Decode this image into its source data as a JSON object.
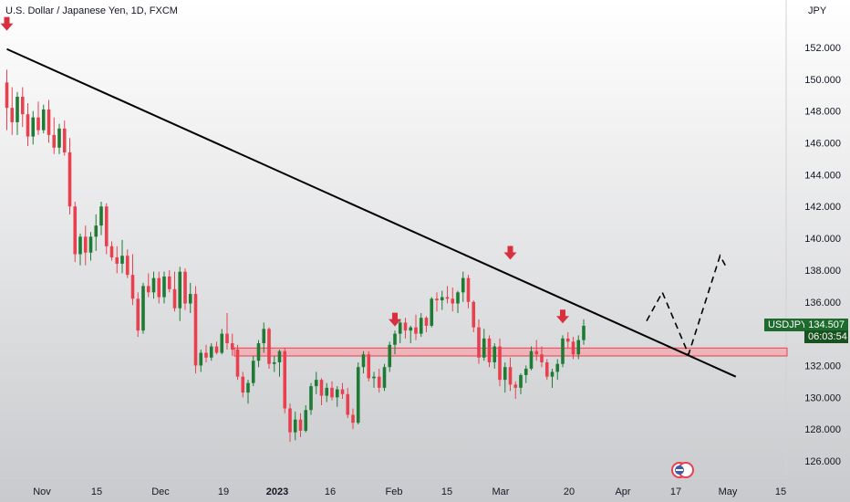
{
  "chart_data": {
    "type": "candlestick",
    "title": "U.S. Dollar / Japanese Yen, 1D, FXCM",
    "currency_label": "JPY",
    "symbol": "USDJPY",
    "last_price": "134.507",
    "countdown": "06:03:54",
    "ylim": [
      125.0,
      155.0
    ],
    "y_ticks": [
      "152.000",
      "150.000",
      "148.000",
      "146.000",
      "144.000",
      "142.000",
      "140.000",
      "138.000",
      "136.000",
      "134.000",
      "132.000",
      "130.000",
      "128.000",
      "126.000"
    ],
    "x_ticks": [
      {
        "label": "Nov",
        "bold": false
      },
      {
        "label": "15",
        "bold": false
      },
      {
        "label": "Dec",
        "bold": false
      },
      {
        "label": "19",
        "bold": false
      },
      {
        "label": "2023",
        "bold": true
      },
      {
        "label": "16",
        "bold": false
      },
      {
        "label": "Feb",
        "bold": false
      },
      {
        "label": "15",
        "bold": false
      },
      {
        "label": "Mar",
        "bold": false
      },
      {
        "label": "20",
        "bold": false
      },
      {
        "label": "Apr",
        "bold": false
      },
      {
        "label": "17",
        "bold": false
      },
      {
        "label": "May",
        "bold": false
      },
      {
        "label": "15",
        "bold": false
      }
    ],
    "colors": {
      "up": "#1e7b34",
      "down": "#e8404f",
      "line": "#000000",
      "zone": "#f4a7ae",
      "zone_border": "#e8404f",
      "arrow": "#d93040"
    },
    "candles": [
      [
        149.8,
        150.6,
        146.8,
        148.2
      ],
      [
        148.2,
        149.5,
        146.5,
        147.3
      ],
      [
        147.3,
        149.2,
        146.5,
        148.9
      ],
      [
        148.9,
        149.5,
        147.0,
        147.8
      ],
      [
        147.8,
        148.5,
        145.8,
        146.4
      ],
      [
        146.4,
        148.0,
        145.9,
        147.6
      ],
      [
        147.6,
        148.6,
        146.5,
        146.8
      ],
      [
        146.8,
        148.4,
        146.6,
        148.1
      ],
      [
        148.1,
        148.7,
        146.0,
        146.5
      ],
      [
        146.5,
        147.6,
        145.3,
        145.7
      ],
      [
        145.7,
        147.2,
        145.3,
        146.9
      ],
      [
        146.9,
        147.4,
        145.2,
        145.4
      ],
      [
        145.4,
        146.3,
        141.5,
        142.0
      ],
      [
        142.0,
        142.3,
        138.5,
        139.0
      ],
      [
        139.0,
        140.3,
        138.3,
        140.1
      ],
      [
        140.1,
        140.8,
        138.3,
        139.1
      ],
      [
        139.1,
        140.4,
        138.6,
        140.1
      ],
      [
        140.1,
        141.5,
        139.2,
        140.8
      ],
      [
        140.8,
        142.3,
        140.2,
        142.0
      ],
      [
        142.0,
        142.2,
        139.0,
        139.5
      ],
      [
        139.5,
        139.8,
        138.6,
        138.8
      ],
      [
        138.8,
        139.5,
        137.8,
        138.4
      ],
      [
        138.4,
        139.9,
        137.8,
        138.9
      ],
      [
        138.9,
        139.3,
        137.5,
        137.7
      ],
      [
        137.7,
        139.0,
        135.8,
        136.2
      ],
      [
        136.2,
        136.6,
        133.8,
        134.2
      ],
      [
        134.2,
        137.2,
        134.0,
        137.0
      ],
      [
        137.0,
        137.8,
        136.3,
        136.6
      ],
      [
        136.6,
        137.9,
        136.2,
        137.5
      ],
      [
        137.5,
        137.9,
        135.9,
        136.3
      ],
      [
        136.3,
        137.9,
        135.9,
        137.6
      ],
      [
        137.6,
        138.0,
        136.6,
        136.8
      ],
      [
        136.8,
        137.9,
        135.4,
        135.6
      ],
      [
        135.6,
        138.2,
        134.8,
        137.9
      ],
      [
        137.9,
        138.1,
        135.5,
        135.9
      ],
      [
        135.9,
        137.2,
        135.3,
        136.5
      ],
      [
        136.5,
        137.0,
        131.5,
        132.0
      ],
      [
        132.0,
        133.0,
        131.6,
        132.8
      ],
      [
        132.8,
        133.3,
        132.2,
        132.5
      ],
      [
        132.5,
        133.4,
        132.3,
        133.2
      ],
      [
        133.2,
        133.5,
        132.7,
        132.8
      ],
      [
        132.8,
        134.3,
        132.7,
        134.0
      ],
      [
        134.0,
        135.3,
        133.0,
        133.4
      ],
      [
        133.4,
        134.0,
        132.6,
        133.0
      ],
      [
        133.0,
        133.3,
        131.1,
        131.3
      ],
      [
        131.3,
        131.6,
        130.0,
        130.3
      ],
      [
        130.3,
        131.1,
        129.6,
        130.9
      ],
      [
        130.9,
        132.6,
        130.7,
        132.3
      ],
      [
        132.3,
        133.6,
        131.9,
        133.4
      ],
      [
        133.4,
        134.7,
        132.8,
        134.3
      ],
      [
        134.3,
        134.4,
        131.8,
        132.1
      ],
      [
        132.1,
        132.6,
        131.6,
        132.2
      ],
      [
        132.2,
        133.0,
        131.3,
        132.9
      ],
      [
        132.9,
        133.1,
        129.0,
        129.3
      ],
      [
        129.3,
        129.6,
        127.2,
        127.8
      ],
      [
        127.8,
        129.1,
        127.3,
        128.6
      ],
      [
        128.6,
        129.0,
        127.5,
        127.9
      ],
      [
        127.9,
        129.5,
        127.8,
        129.2
      ],
      [
        129.2,
        130.9,
        128.9,
        130.7
      ],
      [
        130.7,
        131.6,
        130.2,
        131.1
      ],
      [
        131.1,
        131.2,
        129.5,
        130.1
      ],
      [
        130.1,
        130.9,
        129.7,
        130.6
      ],
      [
        130.6,
        131.0,
        129.8,
        130.0
      ],
      [
        130.0,
        130.7,
        129.4,
        130.5
      ],
      [
        130.5,
        130.9,
        129.9,
        130.2
      ],
      [
        130.2,
        130.6,
        128.7,
        128.9
      ],
      [
        128.9,
        129.3,
        128.0,
        128.4
      ],
      [
        128.4,
        132.2,
        128.3,
        131.9
      ],
      [
        131.9,
        132.9,
        131.5,
        132.7
      ],
      [
        132.7,
        132.9,
        131.0,
        131.2
      ],
      [
        131.2,
        131.6,
        130.6,
        131.3
      ],
      [
        131.3,
        131.8,
        130.3,
        130.6
      ],
      [
        130.6,
        132.1,
        130.4,
        131.9
      ],
      [
        131.9,
        133.5,
        131.6,
        133.3
      ],
      [
        133.3,
        134.2,
        132.7,
        134.0
      ],
      [
        134.0,
        134.9,
        133.4,
        134.7
      ],
      [
        134.7,
        135.0,
        133.7,
        134.2
      ],
      [
        134.2,
        134.5,
        133.4,
        134.4
      ],
      [
        134.4,
        135.2,
        133.6,
        134.0
      ],
      [
        134.0,
        135.3,
        133.8,
        135.0
      ],
      [
        135.0,
        135.1,
        134.1,
        134.5
      ],
      [
        134.5,
        136.3,
        134.4,
        136.2
      ],
      [
        136.2,
        136.6,
        135.4,
        136.1
      ],
      [
        136.1,
        136.7,
        135.5,
        136.3
      ],
      [
        136.3,
        137.0,
        135.9,
        136.2
      ],
      [
        136.2,
        136.9,
        135.4,
        135.9
      ],
      [
        135.9,
        136.7,
        135.3,
        136.6
      ],
      [
        136.6,
        137.9,
        136.0,
        137.5
      ],
      [
        137.5,
        137.7,
        135.6,
        136.0
      ],
      [
        136.0,
        136.1,
        134.1,
        134.4
      ],
      [
        134.4,
        134.9,
        132.1,
        132.5
      ],
      [
        132.5,
        134.3,
        132.3,
        133.7
      ],
      [
        133.7,
        133.9,
        131.9,
        132.2
      ],
      [
        132.2,
        133.4,
        131.8,
        133.2
      ],
      [
        133.2,
        133.7,
        130.7,
        131.1
      ],
      [
        131.1,
        132.2,
        130.3,
        131.9
      ],
      [
        131.9,
        132.5,
        130.4,
        130.8
      ],
      [
        130.8,
        131.0,
        129.9,
        130.6
      ],
      [
        130.6,
        131.5,
        130.2,
        131.4
      ],
      [
        131.4,
        132.0,
        130.9,
        131.8
      ],
      [
        131.8,
        133.2,
        131.7,
        132.9
      ],
      [
        132.9,
        133.6,
        132.3,
        132.7
      ],
      [
        132.7,
        133.2,
        131.9,
        132.2
      ],
      [
        132.2,
        132.4,
        131.1,
        131.3
      ],
      [
        131.3,
        131.8,
        130.6,
        131.6
      ],
      [
        131.6,
        132.4,
        131.1,
        132.1
      ],
      [
        132.1,
        133.9,
        131.9,
        133.7
      ],
      [
        133.7,
        134.1,
        133.1,
        133.5
      ],
      [
        133.5,
        133.8,
        132.4,
        132.7
      ],
      [
        132.7,
        133.9,
        132.4,
        133.6
      ],
      [
        133.6,
        134.9,
        133.3,
        134.5
      ]
    ],
    "trendline": {
      "start": {
        "i": 0,
        "price": 151.9
      },
      "end": {
        "i": 139,
        "price": 131.3
      }
    },
    "support_zone": [
      132.6,
      133.1
    ],
    "projection": [
      {
        "i": 122,
        "price": 134.8
      },
      {
        "i": 125,
        "price": 136.6
      },
      {
        "i": 130,
        "price": 132.7
      },
      {
        "i": 136,
        "price": 138.9
      },
      {
        "i": 137,
        "price": 138.3
      }
    ],
    "markers": [
      {
        "i": 0,
        "price": 153.4
      },
      {
        "i": 74,
        "price": 134.8
      },
      {
        "i": 96,
        "price": 139.0
      },
      {
        "i": 106,
        "price": 135.0
      }
    ]
  }
}
